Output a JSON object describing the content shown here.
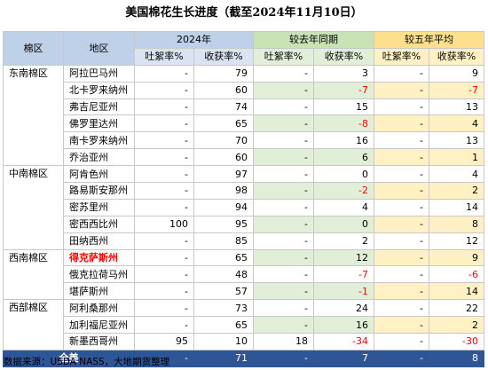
{
  "title": "美国棉花生长进度（截至2024年11月10日）",
  "header": {
    "region_col": "棉区",
    "state_col": "地区",
    "group_2024": "2024年",
    "group_yoy": "较去年同期",
    "group_5yr": "较五年平均",
    "col_boll": "吐絮率%",
    "col_harvest": "收获率%"
  },
  "rows": [
    {
      "region": "东南棉区",
      "state": "阿拉巴马州",
      "boll": "-",
      "harvest": "79",
      "yoy_boll": "-",
      "yoy_harvest": "3",
      "avg_boll": "-",
      "avg_harvest": "9"
    },
    {
      "region": "",
      "state": "北卡罗来纳州",
      "boll": "-",
      "harvest": "60",
      "yoy_boll": "-",
      "yoy_harvest": "-7",
      "avg_boll": "-",
      "avg_harvest": "-7"
    },
    {
      "region": "",
      "state": "弗吉尼亚州",
      "boll": "-",
      "harvest": "74",
      "yoy_boll": "-",
      "yoy_harvest": "15",
      "avg_boll": "-",
      "avg_harvest": "13"
    },
    {
      "region": "",
      "state": "佛罗里达州",
      "boll": "-",
      "harvest": "65",
      "yoy_boll": "-",
      "yoy_harvest": "-8",
      "avg_boll": "-",
      "avg_harvest": "4"
    },
    {
      "region": "",
      "state": "南卡罗来纳州",
      "boll": "-",
      "harvest": "70",
      "yoy_boll": "-",
      "yoy_harvest": "16",
      "avg_boll": "-",
      "avg_harvest": "13"
    },
    {
      "region": "",
      "state": "乔治亚州",
      "boll": "-",
      "harvest": "60",
      "yoy_boll": "-",
      "yoy_harvest": "6",
      "avg_boll": "-",
      "avg_harvest": "1"
    },
    {
      "region": "中南棉区",
      "state": "阿肯色州",
      "boll": "-",
      "harvest": "97",
      "yoy_boll": "-",
      "yoy_harvest": "0",
      "avg_boll": "-",
      "avg_harvest": "4"
    },
    {
      "region": "",
      "state": "路易斯安那州",
      "boll": "-",
      "harvest": "98",
      "yoy_boll": "-",
      "yoy_harvest": "-2",
      "avg_boll": "-",
      "avg_harvest": "2"
    },
    {
      "region": "",
      "state": "密苏里州",
      "boll": "-",
      "harvest": "94",
      "yoy_boll": "-",
      "yoy_harvest": "4",
      "avg_boll": "-",
      "avg_harvest": "14"
    },
    {
      "region": "",
      "state": "密西西比州",
      "boll": "100",
      "harvest": "95",
      "yoy_boll": "-",
      "yoy_harvest": "0",
      "avg_boll": "-",
      "avg_harvest": "8"
    },
    {
      "region": "",
      "state": "田纳西州",
      "boll": "-",
      "harvest": "85",
      "yoy_boll": "-",
      "yoy_harvest": "2",
      "avg_boll": "-",
      "avg_harvest": "12"
    },
    {
      "region": "西南棉区",
      "state": "得克萨斯州",
      "boll": "-",
      "harvest": "65",
      "yoy_boll": "-",
      "yoy_harvest": "12",
      "avg_boll": "-",
      "avg_harvest": "9"
    },
    {
      "region": "",
      "state": "俄克拉荷马州",
      "boll": "-",
      "harvest": "48",
      "yoy_boll": "-",
      "yoy_harvest": "-7",
      "avg_boll": "-",
      "avg_harvest": "-6"
    },
    {
      "region": "",
      "state": "堪萨斯州",
      "boll": "-",
      "harvest": "57",
      "yoy_boll": "-",
      "yoy_harvest": "-1",
      "avg_boll": "-",
      "avg_harvest": "14"
    },
    {
      "region": "西部棉区",
      "state": "阿利桑那州",
      "boll": "-",
      "harvest": "73",
      "yoy_boll": "-",
      "yoy_harvest": "24",
      "avg_boll": "-",
      "avg_harvest": "22"
    },
    {
      "region": "",
      "state": "加利福尼亚州",
      "boll": "-",
      "harvest": "65",
      "yoy_boll": "-",
      "yoy_harvest": "16",
      "avg_boll": "-",
      "avg_harvest": "2"
    },
    {
      "region": "",
      "state": "新墨西哥州",
      "boll": "95",
      "harvest": "10",
      "yoy_boll": "18",
      "yoy_harvest": "-34",
      "avg_boll": "-",
      "avg_harvest": "-30"
    }
  ],
  "total": {
    "label": "全美",
    "boll": "-",
    "harvest": "71",
    "yoy_boll": "-",
    "yoy_harvest": "7",
    "avg_boll": "-",
    "avg_harvest": "8"
  },
  "source": "数据来源：USDA NASS，大地期货整理",
  "colors": {
    "header_blue": "#bfd0e9",
    "header_green": "#c8e2b6",
    "header_yellow": "#fde08d",
    "total_bg": "#2f5597",
    "negative": "#ff0000"
  },
  "chart_data": {
    "type": "table",
    "title": "美国棉花生长进度（截至2024年11月10日）",
    "columns": [
      "棉区",
      "地区",
      "2024年 吐絮率%",
      "2024年 收获率%",
      "较去年同期 吐絮率%",
      "较去年同期 收获率%",
      "较五年平均 吐絮率%",
      "较五年平均 收获率%"
    ],
    "categories": [
      "阿拉巴马州",
      "北卡罗来纳州",
      "弗吉尼亚州",
      "佛罗里达州",
      "南卡罗来纳州",
      "乔治亚州",
      "阿肯色州",
      "路易斯安那州",
      "密苏里州",
      "密西西比州",
      "田纳西州",
      "得克萨斯州",
      "俄克拉荷马州",
      "堪萨斯州",
      "阿利桑那州",
      "加利福尼亚州",
      "新墨西哥州",
      "全美"
    ],
    "series": [
      {
        "name": "2024年 收获率%",
        "values": [
          79,
          60,
          74,
          65,
          70,
          60,
          97,
          98,
          94,
          95,
          85,
          65,
          48,
          57,
          73,
          65,
          10,
          71
        ]
      },
      {
        "name": "较去年同期 收获率%",
        "values": [
          3,
          -7,
          15,
          -8,
          16,
          6,
          0,
          -2,
          4,
          0,
          2,
          12,
          -7,
          -1,
          24,
          16,
          -34,
          7
        ]
      },
      {
        "name": "较五年平均 收获率%",
        "values": [
          9,
          -7,
          13,
          4,
          13,
          1,
          4,
          2,
          14,
          8,
          12,
          9,
          -6,
          14,
          22,
          2,
          -30,
          8
        ]
      }
    ]
  }
}
